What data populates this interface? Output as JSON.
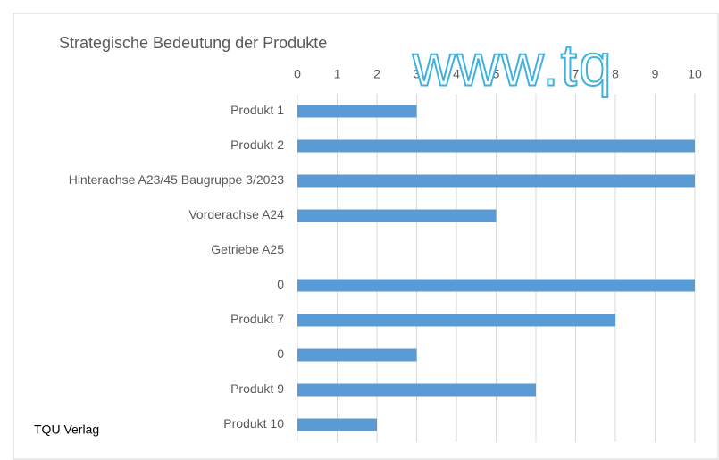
{
  "chart_data": {
    "type": "hbar",
    "title": "Strategische Bedeutung der Produkte",
    "categories": [
      "Produkt 1",
      "Produkt 2",
      "Hinterachse A23/45 Baugruppe 3/2023",
      "Vorderachse A24",
      "Getriebe A25",
      "0",
      "Produkt 7",
      "0",
      "Produkt 9",
      "Produkt 10"
    ],
    "values": [
      3,
      10,
      10,
      5,
      0,
      10,
      8,
      3,
      6,
      2
    ],
    "color": "#5b9bd5",
    "xlim": [
      0,
      10
    ],
    "xticks": [
      0,
      1,
      2,
      3,
      4,
      5,
      6,
      7,
      8,
      9,
      10
    ],
    "grid": true
  },
  "watermark": "www.tq",
  "footer": "TQU Verlag"
}
